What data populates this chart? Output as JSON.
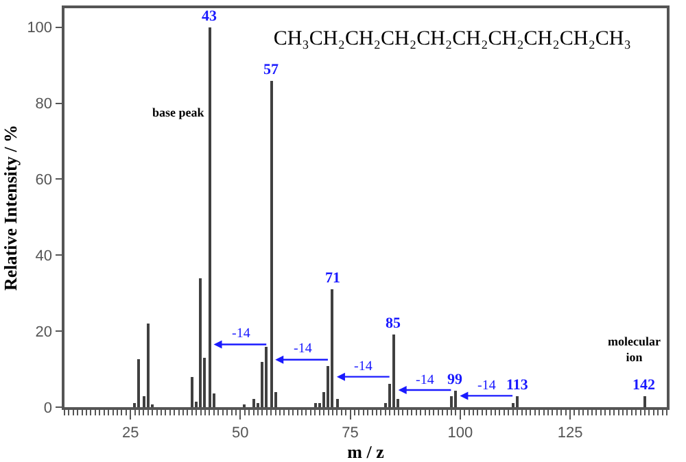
{
  "chart_data": {
    "type": "bar",
    "title": "CH₃CH₂CH₂CH₂CH₂CH₂CH₂CH₂CH₂CH₃",
    "xlabel": "m / z",
    "ylabel": "Relative Intensity / %",
    "x": [
      26,
      27,
      28,
      29,
      30,
      39,
      40,
      41,
      42,
      43,
      44,
      51,
      53,
      54,
      55,
      56,
      57,
      58,
      67,
      68,
      69,
      70,
      71,
      72,
      83,
      84,
      85,
      86,
      98,
      99,
      112,
      113,
      142
    ],
    "values": [
      1,
      12.5,
      3,
      22,
      0.5,
      8,
      1.5,
      34,
      13,
      100,
      3.5,
      0.5,
      2,
      1,
      12,
      16,
      86,
      4,
      1,
      1,
      4,
      11,
      31,
      2,
      1,
      6,
      19,
      2,
      3,
      4.5,
      1,
      3,
      3
    ],
    "color": "#404040",
    "xlim": [
      10,
      147
    ],
    "xticks": [
      25,
      50,
      75,
      100,
      125
    ],
    "ylim": [
      0,
      105
    ],
    "yticks": [
      0,
      20,
      40,
      60,
      80,
      100
    ],
    "grid": false,
    "legend": false,
    "annotations": [
      {
        "text": "43",
        "x": 43,
        "y": 100
      },
      {
        "text": "57",
        "x": 57,
        "y": 86
      },
      {
        "text": "71",
        "x": 71,
        "y": 31
      },
      {
        "text": "85",
        "x": 85,
        "y": 19
      },
      {
        "text": "99",
        "x": 99,
        "y": 4.5
      },
      {
        "text": "113",
        "x": 113,
        "y": 3
      },
      {
        "text": "142",
        "x": 142,
        "y": 3
      },
      "base peak",
      "molecular\nion",
      {
        "text": "-14",
        "x": 43,
        "y": 16.5
      },
      {
        "text": "-14",
        "x": 57,
        "y": 12.5
      },
      {
        "text": "-14",
        "x": 71,
        "y": 8
      },
      {
        "text": "-14",
        "x": 85,
        "y": 4.5
      },
      {
        "text": "-14",
        "x": 99,
        "y": 3
      }
    ]
  }
}
